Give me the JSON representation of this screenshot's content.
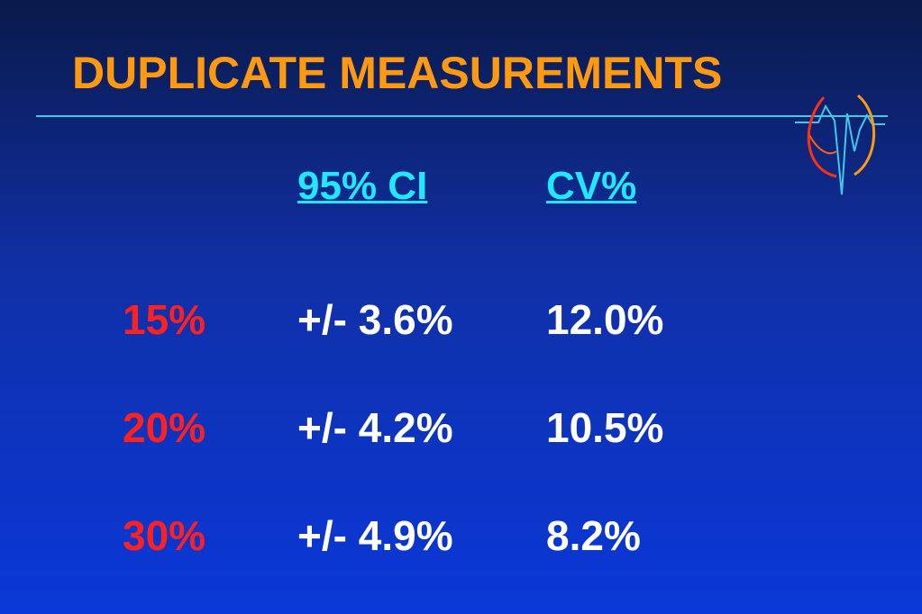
{
  "header": {
    "title": "DUPLICATE MEASUREMENTS"
  },
  "table": {
    "columns": [
      "95% CI",
      "CV%"
    ],
    "rows": [
      [
        "15%",
        "+/- 3.6%",
        "12.0%"
      ],
      [
        "20%",
        "+/- 4.2%",
        "10.5%"
      ],
      [
        "30%",
        "+/- 4.9%",
        "8.2%"
      ]
    ]
  }
}
